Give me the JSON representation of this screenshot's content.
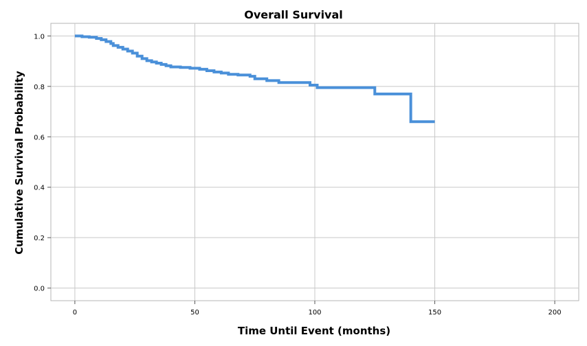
{
  "chart_data": {
    "type": "line",
    "title": "Overall Survival",
    "xlabel": "Time Until Event (months)",
    "ylabel": "Cumulative Survival Probability",
    "xlim": [
      -10,
      210
    ],
    "ylim": [
      -0.05,
      1.05
    ],
    "x_ticks": [
      0,
      50,
      100,
      150,
      200
    ],
    "x_tick_labels": [
      "0",
      "50",
      "100",
      "150",
      "200"
    ],
    "y_ticks": [
      0.0,
      0.2,
      0.4,
      0.6,
      0.8,
      1.0
    ],
    "y_tick_labels": [
      "0.0",
      "0.2",
      "0.4",
      "0.6",
      "0.8",
      "1.0"
    ],
    "grid": true,
    "legend": "none",
    "colors": {
      "curve": "#4a90d9"
    },
    "series": [
      {
        "step": true,
        "x": [
          0,
          3,
          6,
          9,
          11,
          13,
          15,
          16,
          18,
          20,
          22,
          24,
          26,
          28,
          30,
          32,
          34,
          36,
          38,
          40,
          44,
          48,
          52,
          55,
          58,
          61,
          64,
          68,
          73,
          75,
          80,
          85,
          98,
          101,
          125,
          140,
          150
        ],
        "y": [
          1.0,
          0.997,
          0.995,
          0.99,
          0.985,
          0.978,
          0.97,
          0.962,
          0.955,
          0.948,
          0.94,
          0.932,
          0.92,
          0.91,
          0.902,
          0.897,
          0.892,
          0.887,
          0.882,
          0.877,
          0.875,
          0.872,
          0.868,
          0.862,
          0.857,
          0.853,
          0.848,
          0.845,
          0.84,
          0.83,
          0.823,
          0.815,
          0.805,
          0.795,
          0.77,
          0.66,
          0.66
        ]
      }
    ]
  }
}
